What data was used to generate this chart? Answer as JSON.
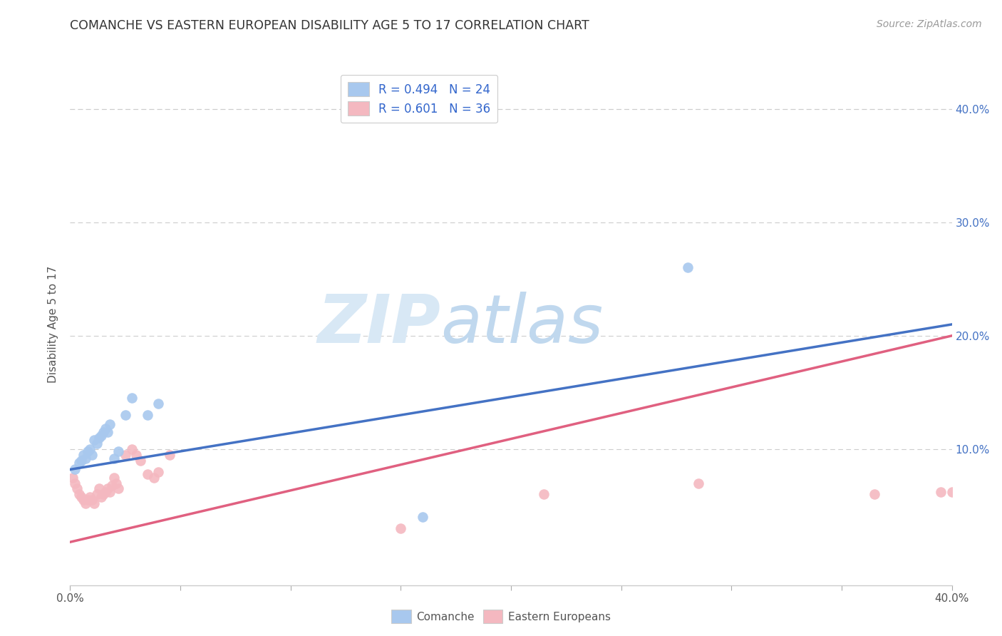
{
  "title": "COMANCHE VS EASTERN EUROPEAN DISABILITY AGE 5 TO 17 CORRELATION CHART",
  "source": "Source: ZipAtlas.com",
  "ylabel": "Disability Age 5 to 17",
  "xlim": [
    0.0,
    0.4
  ],
  "ylim": [
    -0.02,
    0.44
  ],
  "blue_color": "#A8C8EE",
  "pink_color": "#F4B8C0",
  "line_blue": "#4472C4",
  "line_pink": "#E06080",
  "legend_label1": "R = 0.494   N = 24",
  "legend_label2": "R = 0.601   N = 36",
  "watermark_zip": "ZIP",
  "watermark_atlas": "atlas",
  "comanche_x": [
    0.002,
    0.004,
    0.005,
    0.006,
    0.007,
    0.008,
    0.009,
    0.01,
    0.011,
    0.012,
    0.013,
    0.014,
    0.015,
    0.016,
    0.017,
    0.018,
    0.02,
    0.022,
    0.025,
    0.028,
    0.035,
    0.04,
    0.16,
    0.28
  ],
  "comanche_y": [
    0.082,
    0.088,
    0.09,
    0.095,
    0.092,
    0.098,
    0.1,
    0.095,
    0.108,
    0.105,
    0.11,
    0.112,
    0.115,
    0.118,
    0.115,
    0.122,
    0.092,
    0.098,
    0.13,
    0.145,
    0.13,
    0.14,
    0.04,
    0.26
  ],
  "eastern_x": [
    0.001,
    0.002,
    0.003,
    0.004,
    0.005,
    0.006,
    0.007,
    0.008,
    0.009,
    0.01,
    0.011,
    0.012,
    0.013,
    0.014,
    0.015,
    0.016,
    0.017,
    0.018,
    0.019,
    0.02,
    0.021,
    0.022,
    0.025,
    0.028,
    0.03,
    0.032,
    0.035,
    0.038,
    0.04,
    0.045,
    0.15,
    0.215,
    0.285,
    0.365,
    0.395,
    0.4
  ],
  "eastern_y": [
    0.075,
    0.07,
    0.065,
    0.06,
    0.058,
    0.055,
    0.052,
    0.055,
    0.058,
    0.055,
    0.052,
    0.06,
    0.065,
    0.058,
    0.06,
    0.062,
    0.065,
    0.062,
    0.068,
    0.075,
    0.07,
    0.065,
    0.095,
    0.1,
    0.095,
    0.09,
    0.078,
    0.075,
    0.08,
    0.095,
    0.03,
    0.06,
    0.07,
    0.06,
    0.062,
    0.062
  ],
  "blue_line_x0": 0.0,
  "blue_line_y0": 0.082,
  "blue_line_x1": 0.4,
  "blue_line_y1": 0.21,
  "pink_line_x0": 0.0,
  "pink_line_y0": 0.018,
  "pink_line_x1": 0.4,
  "pink_line_y1": 0.2
}
